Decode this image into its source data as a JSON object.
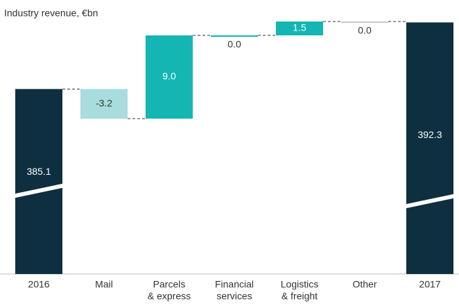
{
  "chart_data": {
    "type": "waterfall",
    "title": "Industry revenue, €bn",
    "categories": [
      [
        "2016"
      ],
      [
        "Mail"
      ],
      [
        "Parcels",
        "& express"
      ],
      [
        "Financial",
        "services"
      ],
      [
        "Logistics",
        "& freight"
      ],
      [
        "Other"
      ],
      [
        "2017"
      ]
    ],
    "values": [
      385.1,
      -3.2,
      9.0,
      0.0,
      1.5,
      0.0,
      392.3
    ],
    "value_labels": [
      "385.1",
      "-3.2",
      "9.0",
      "0.0",
      "1.5",
      "0.0",
      "392.3"
    ],
    "is_total": [
      true,
      false,
      false,
      false,
      false,
      false,
      true
    ],
    "colors": [
      "#0e2f40",
      "#a9dcdc",
      "#13b6b2",
      "#13b6b2",
      "#13b6b2",
      "#c8c8c8",
      "#0e2f40"
    ]
  }
}
